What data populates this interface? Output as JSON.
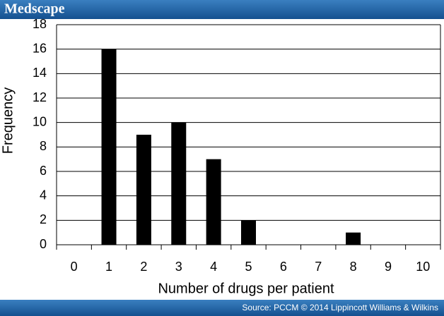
{
  "header": {
    "brand": "Medscape"
  },
  "chart_data": {
    "type": "bar",
    "ylabel": "Frequency",
    "xlabel": "Number of drugs per patient",
    "categories": [
      "0",
      "1",
      "2",
      "3",
      "4",
      "5",
      "6",
      "7",
      "8",
      "9",
      "10"
    ],
    "values": [
      0,
      16,
      9,
      10,
      7,
      2,
      0,
      0,
      1,
      0,
      0
    ],
    "color": "#000000",
    "ylim": [
      0,
      18
    ],
    "yticks": [
      0,
      2,
      4,
      6,
      8,
      10,
      12,
      14,
      16,
      18
    ],
    "grid": true
  },
  "footer": {
    "source": "Source: PCCM © 2014 Lippincott Williams & Wilkins"
  }
}
